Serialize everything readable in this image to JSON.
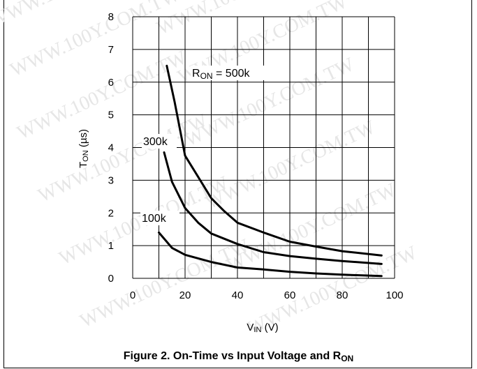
{
  "chart_data": {
    "type": "line",
    "title": "Figure 2. On-Time vs Input Voltage and R",
    "title_sub": "ON",
    "xlabel": "V",
    "xlabel_sub": "IN",
    "xlabel_unit": " (V)",
    "ylabel": "T",
    "ylabel_sub": "ON",
    "ylabel_unit": " (µs)",
    "xlim": [
      0,
      100
    ],
    "ylim": [
      0,
      8
    ],
    "xticks": [
      "0",
      "20",
      "40",
      "60",
      "80",
      "100"
    ],
    "yticks": [
      "0",
      "1",
      "2",
      "3",
      "4",
      "5",
      "6",
      "7",
      "8"
    ],
    "grid": true,
    "series": [
      {
        "name": "R_ON = 500k",
        "label_parts": [
          "R",
          "ON",
          " = 500k"
        ],
        "x": [
          13,
          16,
          20,
          25,
          30,
          35,
          40,
          50,
          60,
          70,
          80,
          95
        ],
        "y": [
          6.5,
          5.4,
          3.75,
          3.1,
          2.45,
          2.05,
          1.7,
          1.4,
          1.12,
          0.97,
          0.83,
          0.7
        ]
      },
      {
        "name": "300k",
        "label_parts": [
          "300k"
        ],
        "x": [
          12,
          15,
          20,
          25,
          30,
          40,
          50,
          60,
          70,
          80,
          95
        ],
        "y": [
          3.85,
          2.95,
          2.15,
          1.7,
          1.37,
          1.05,
          0.8,
          0.68,
          0.6,
          0.53,
          0.44
        ]
      },
      {
        "name": "100k",
        "label_parts": [
          "100k"
        ],
        "x": [
          10,
          15,
          20,
          30,
          40,
          50,
          60,
          70,
          80,
          95
        ],
        "y": [
          1.4,
          0.93,
          0.72,
          0.5,
          0.33,
          0.27,
          0.2,
          0.15,
          0.11,
          0.07
        ]
      }
    ],
    "watermark": "WWW.100Y.COM.TW"
  }
}
